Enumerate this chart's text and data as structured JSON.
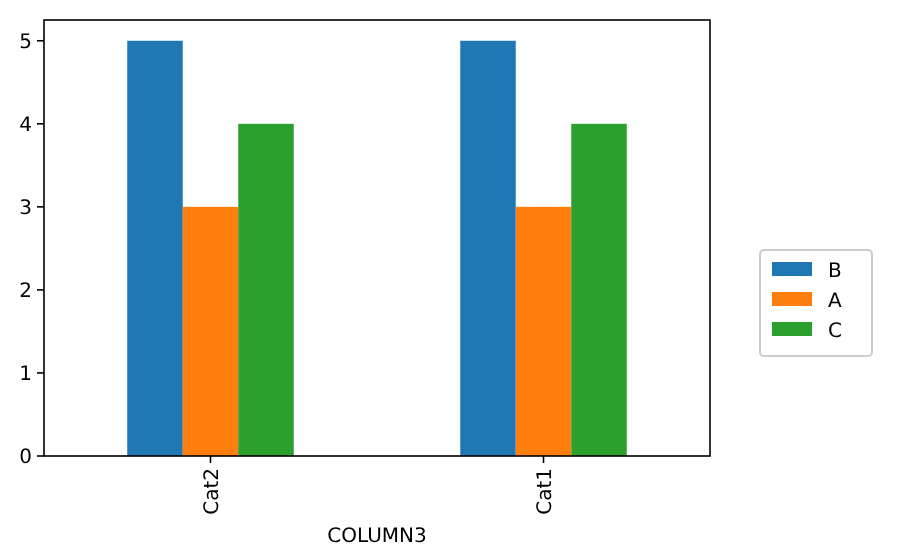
{
  "chart_data": {
    "type": "bar",
    "xlabel": "COLUMN3",
    "categories": [
      "Cat2",
      "Cat1"
    ],
    "series": [
      {
        "name": "B",
        "color": "#1f77b4",
        "values": [
          5,
          5
        ]
      },
      {
        "name": "A",
        "color": "#ff7f0e",
        "values": [
          3,
          3
        ]
      },
      {
        "name": "C",
        "color": "#2ca02c",
        "values": [
          4,
          4
        ]
      }
    ],
    "ylim": [
      0,
      5.25
    ],
    "yticks": [
      0,
      1,
      2,
      3,
      4,
      5
    ],
    "legend": "right",
    "grid": false
  }
}
